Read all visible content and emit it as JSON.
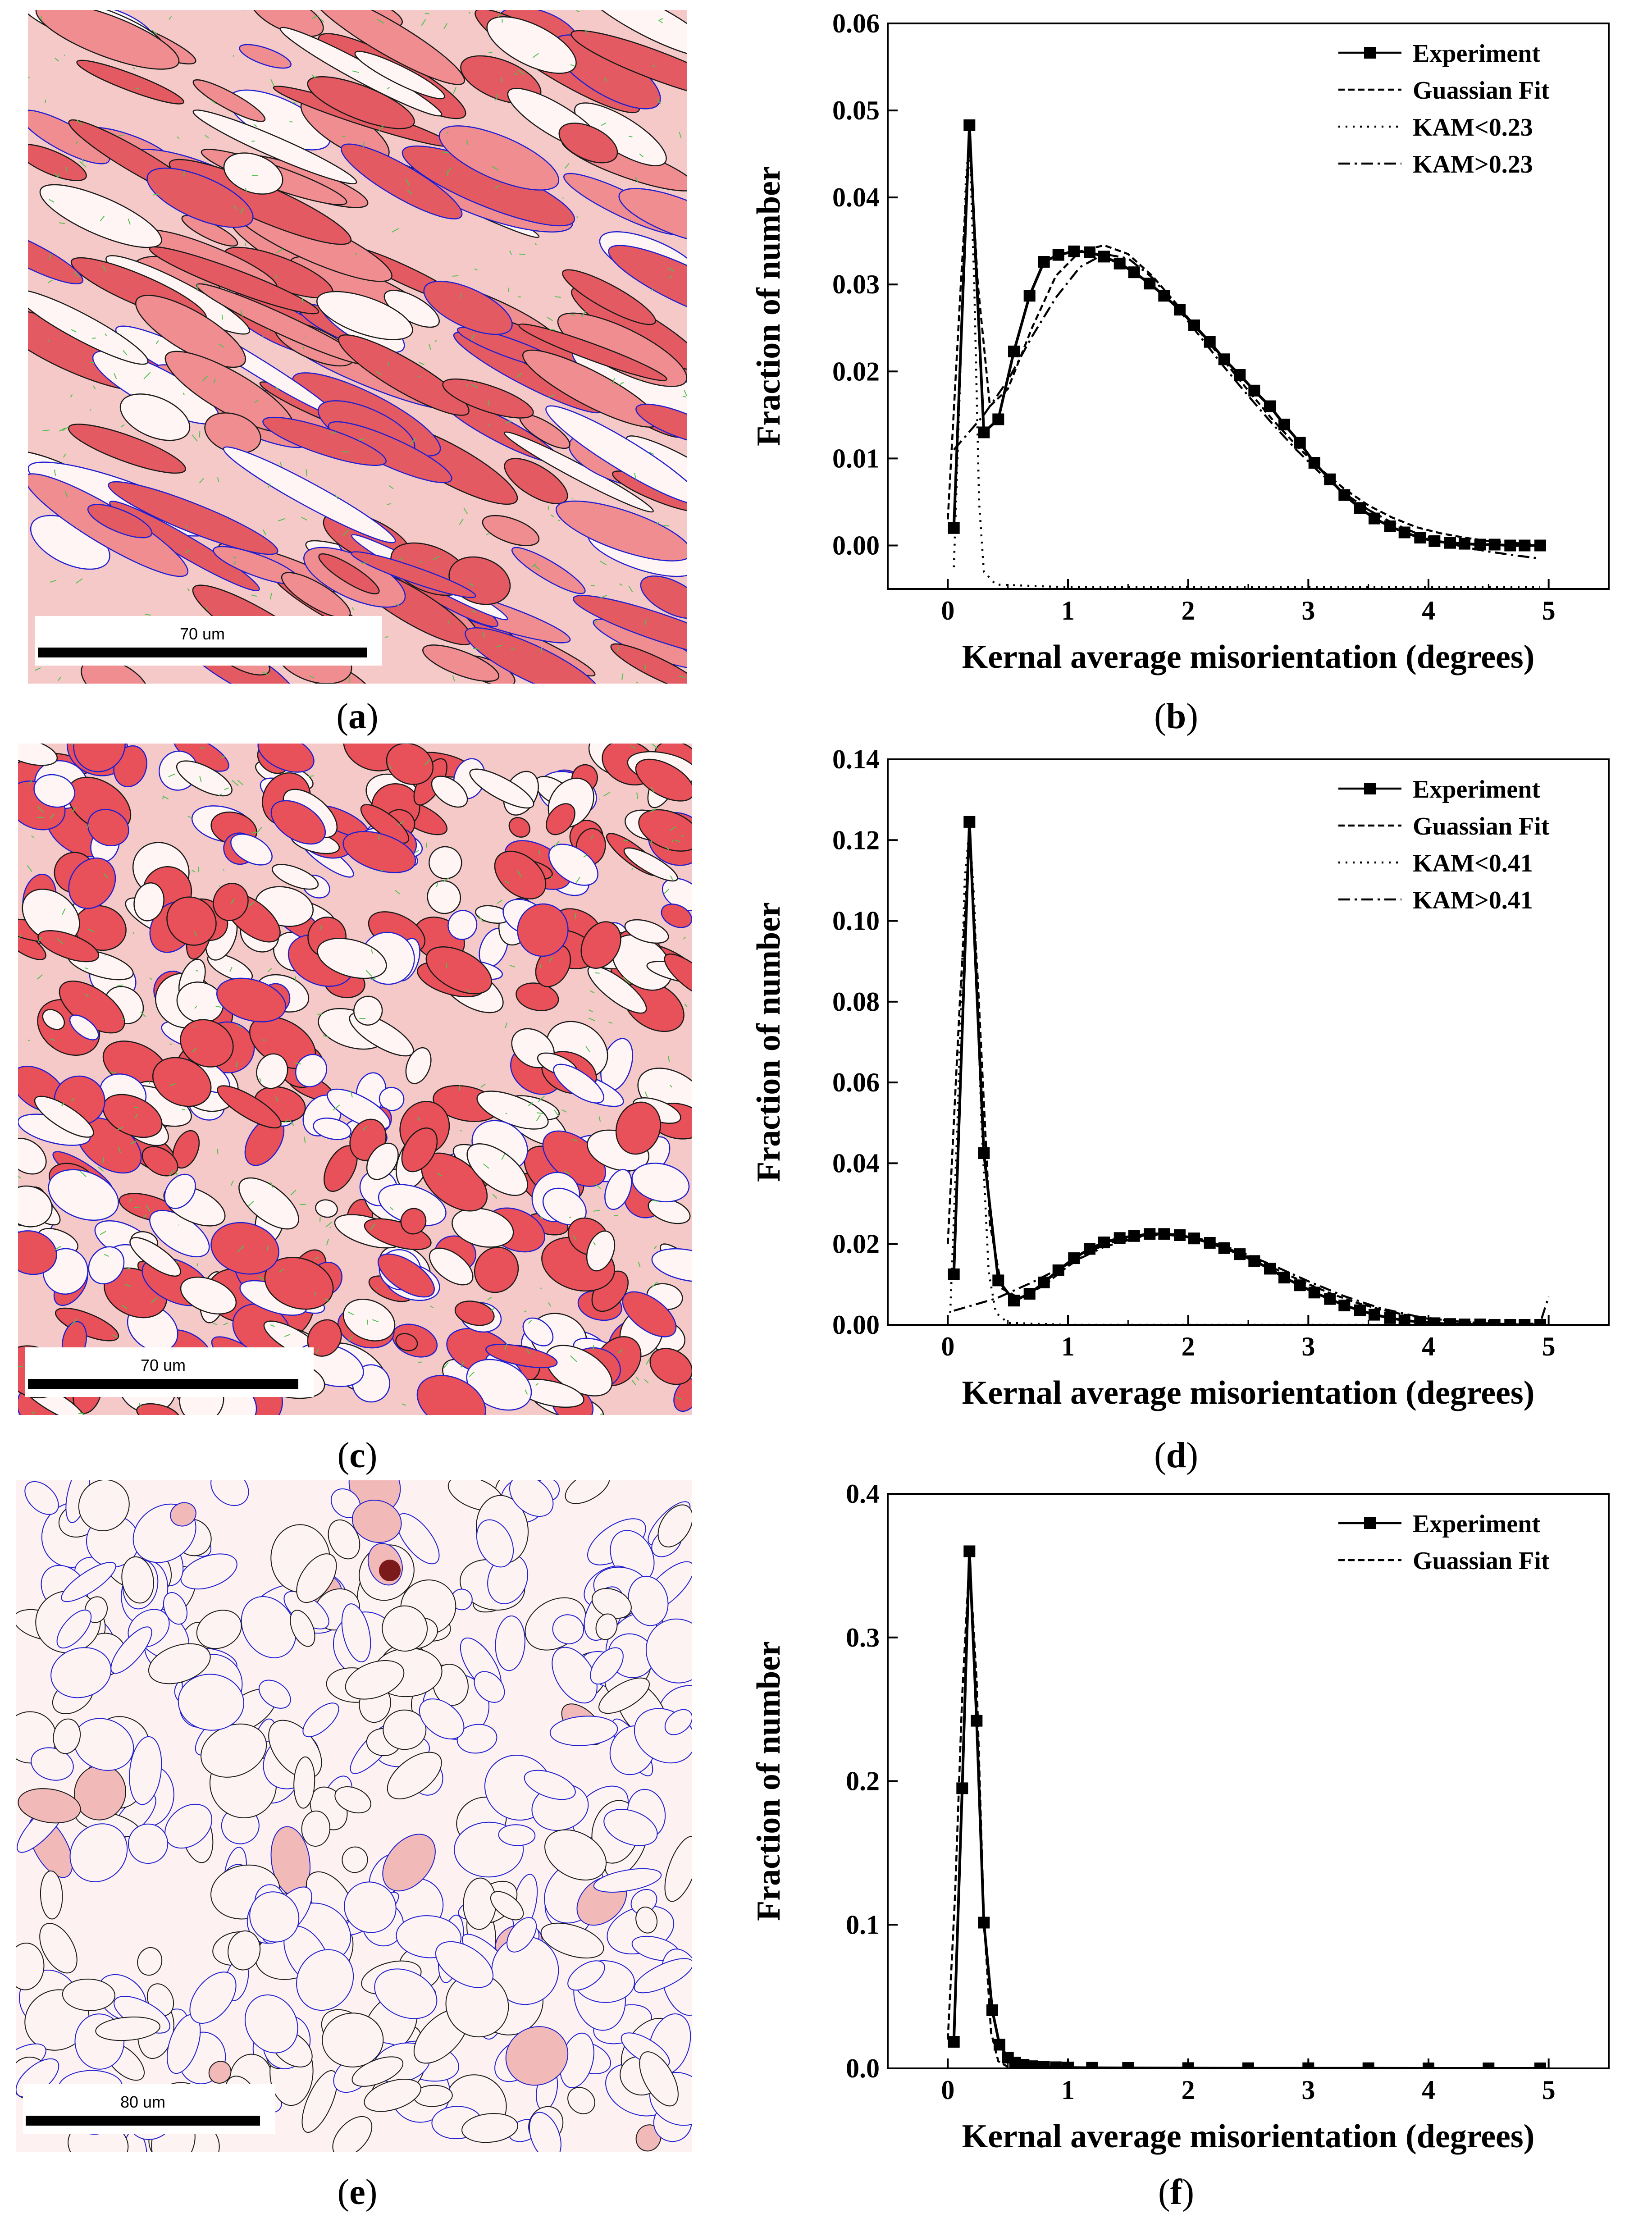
{
  "panels": [
    {
      "id": "a",
      "kind": "micrograph",
      "caption_letter": "a",
      "scale_label": "70 um",
      "style": "deformed"
    },
    {
      "id": "b",
      "kind": "chart",
      "caption_letter": "b"
    },
    {
      "id": "c",
      "kind": "micrograph",
      "caption_letter": "c",
      "scale_label": "70 um",
      "style": "mixed"
    },
    {
      "id": "d",
      "kind": "chart",
      "caption_letter": "d"
    },
    {
      "id": "e",
      "kind": "micrograph",
      "caption_letter": "e",
      "scale_label": "80 um",
      "style": "recrystallized"
    },
    {
      "id": "f",
      "kind": "chart",
      "caption_letter": "f"
    }
  ],
  "colors": {
    "kam_high": "#e8505a",
    "kam_low": "#fff5f5",
    "hagb": "#1a1a1a",
    "lagb": "#1f1fd0",
    "subgrain": "#4ec24e",
    "line": "#000000"
  },
  "chart_data": [
    {
      "type": "line",
      "panel": "b",
      "xlabel": "Kernal average misorientation (degrees)",
      "ylabel": "Fraction of number",
      "xlim": [
        -0.5,
        5.5
      ],
      "ylim": [
        -0.005,
        0.06
      ],
      "xticks": [
        0,
        1,
        2,
        3,
        4,
        5
      ],
      "yticks": [
        0.0,
        0.01,
        0.02,
        0.03,
        0.04,
        0.05,
        0.06
      ],
      "ytick_labels": [
        "0.00",
        "0.01",
        "0.02",
        "0.03",
        "0.04",
        "0.05",
        "0.06"
      ],
      "legend": [
        "Experiment",
        "Guassian Fit",
        "KAM<0.23",
        "KAM>0.23"
      ],
      "legend_position": "top-right",
      "series": [
        {
          "name": "Experiment",
          "style": "solid-square-markers",
          "x": [
            0.05,
            0.18,
            0.3,
            0.42,
            0.55,
            0.68,
            0.8,
            0.92,
            1.05,
            1.18,
            1.3,
            1.43,
            1.55,
            1.68,
            1.8,
            1.93,
            2.05,
            2.18,
            2.3,
            2.43,
            2.55,
            2.68,
            2.8,
            2.93,
            3.05,
            3.18,
            3.3,
            3.43,
            3.55,
            3.68,
            3.8,
            3.93,
            4.05,
            4.18,
            4.3,
            4.43,
            4.55,
            4.68,
            4.8,
            4.93
          ],
          "y": [
            0.002,
            0.0483,
            0.013,
            0.0145,
            0.0223,
            0.0287,
            0.0326,
            0.0334,
            0.0338,
            0.0337,
            0.0332,
            0.0324,
            0.0314,
            0.0301,
            0.0287,
            0.0271,
            0.0253,
            0.0234,
            0.0214,
            0.0196,
            0.0178,
            0.016,
            0.0139,
            0.0118,
            0.0095,
            0.0076,
            0.0058,
            0.0043,
            0.0031,
            0.0022,
            0.0015,
            0.0009,
            0.0005,
            0.0003,
            0.0002,
            0.0001,
            0.0001,
            0.0,
            0.0,
            0.0
          ]
        },
        {
          "name": "Guassian Fit",
          "style": "dashed",
          "x": [
            0.0,
            0.1,
            0.18,
            0.25,
            0.35,
            0.5,
            0.7,
            0.9,
            1.1,
            1.3,
            1.5,
            1.7,
            1.9,
            2.1,
            2.3,
            2.5,
            2.7,
            2.9,
            3.1,
            3.3,
            3.5,
            3.7,
            3.9,
            4.1,
            4.3,
            4.5,
            4.7,
            4.93
          ],
          "y": [
            0.003,
            0.028,
            0.047,
            0.03,
            0.016,
            0.018,
            0.025,
            0.031,
            0.0338,
            0.0345,
            0.0335,
            0.031,
            0.0278,
            0.0245,
            0.0212,
            0.0178,
            0.0145,
            0.0115,
            0.0088,
            0.0065,
            0.0046,
            0.0032,
            0.0021,
            0.0014,
            0.0009,
            0.0005,
            0.0003,
            0.0001
          ]
        },
        {
          "name": "KAM<0.23",
          "style": "dotted",
          "x": [
            0.05,
            0.1,
            0.15,
            0.18,
            0.22,
            0.26,
            0.3,
            0.4,
            1.0,
            2.0,
            3.0,
            4.0,
            4.93
          ],
          "y": [
            -0.0025,
            0.018,
            0.042,
            0.047,
            0.03,
            0.005,
            -0.003,
            -0.0045,
            -0.0048,
            -0.0048,
            -0.0048,
            -0.0048,
            -0.0048
          ]
        },
        {
          "name": "KAM>0.23",
          "style": "dash-dot",
          "x": [
            0.05,
            0.3,
            0.5,
            0.7,
            0.9,
            1.1,
            1.3,
            1.5,
            1.7,
            1.9,
            2.1,
            2.3,
            2.5,
            2.7,
            2.9,
            3.1,
            3.3,
            3.5,
            3.7,
            3.9,
            4.1,
            4.3,
            4.5,
            4.7,
            4.93
          ],
          "y": [
            0.011,
            0.015,
            0.019,
            0.024,
            0.0285,
            0.032,
            0.0335,
            0.033,
            0.0308,
            0.0275,
            0.024,
            0.0205,
            0.0172,
            0.014,
            0.011,
            0.0083,
            0.006,
            0.0041,
            0.0026,
            0.0014,
            0.0005,
            -0.0002,
            -0.0007,
            -0.0011,
            -0.0015
          ]
        }
      ]
    },
    {
      "type": "line",
      "panel": "d",
      "xlabel": "Kernal average misorientation (degrees)",
      "ylabel": "Fraction of number",
      "xlim": [
        -0.5,
        5.5
      ],
      "ylim": [
        0,
        0.14
      ],
      "xticks": [
        0,
        1,
        2,
        3,
        4,
        5
      ],
      "yticks": [
        0.0,
        0.02,
        0.04,
        0.06,
        0.08,
        0.1,
        0.12,
        0.14
      ],
      "ytick_labels": [
        "0.00",
        "0.02",
        "0.04",
        "0.06",
        "0.08",
        "0.10",
        "0.12",
        "0.14"
      ],
      "legend": [
        "Experiment",
        "Guassian Fit",
        "KAM<0.41",
        "KAM>0.41"
      ],
      "legend_position": "top-right",
      "series": [
        {
          "name": "Experiment",
          "style": "solid-square-markers",
          "x": [
            0.05,
            0.18,
            0.3,
            0.42,
            0.55,
            0.68,
            0.8,
            0.92,
            1.05,
            1.18,
            1.3,
            1.43,
            1.55,
            1.68,
            1.8,
            1.93,
            2.05,
            2.18,
            2.3,
            2.43,
            2.55,
            2.68,
            2.8,
            2.93,
            3.05,
            3.18,
            3.3,
            3.43,
            3.55,
            3.68,
            3.8,
            3.93,
            4.05,
            4.18,
            4.3,
            4.43,
            4.55,
            4.68,
            4.8,
            4.93
          ],
          "y": [
            0.0125,
            0.1245,
            0.0425,
            0.011,
            0.006,
            0.0077,
            0.0105,
            0.0135,
            0.0165,
            0.0188,
            0.0204,
            0.0215,
            0.022,
            0.0225,
            0.0225,
            0.0222,
            0.0214,
            0.0203,
            0.019,
            0.0175,
            0.0158,
            0.0139,
            0.0117,
            0.0098,
            0.008,
            0.0064,
            0.0048,
            0.0036,
            0.0025,
            0.0017,
            0.0011,
            0.0007,
            0.0004,
            0.0002,
            0.0001,
            0.0001,
            0.0,
            0.0,
            0.0,
            0.0
          ]
        },
        {
          "name": "Guassian Fit",
          "style": "dashed",
          "x": [
            0.0,
            0.1,
            0.18,
            0.25,
            0.35,
            0.45,
            0.6,
            0.8,
            1.0,
            1.2,
            1.4,
            1.6,
            1.8,
            2.0,
            2.2,
            2.4,
            2.6,
            2.8,
            3.0,
            3.2,
            3.4,
            3.6,
            3.8,
            4.0,
            4.3,
            4.6,
            4.93
          ],
          "y": [
            0.02,
            0.08,
            0.121,
            0.085,
            0.025,
            0.009,
            0.0065,
            0.0098,
            0.0145,
            0.0185,
            0.0208,
            0.022,
            0.0224,
            0.0218,
            0.0203,
            0.0181,
            0.0156,
            0.0128,
            0.0101,
            0.0076,
            0.0055,
            0.0038,
            0.0025,
            0.0015,
            0.0007,
            0.0002,
            0.0
          ]
        },
        {
          "name": "KAM<0.41",
          "style": "dotted",
          "x": [
            0.02,
            0.08,
            0.14,
            0.18,
            0.22,
            0.28,
            0.34,
            0.4,
            0.5,
            1.0,
            2.0,
            3.0,
            4.0,
            4.93
          ],
          "y": [
            0.003,
            0.05,
            0.11,
            0.123,
            0.105,
            0.05,
            0.013,
            0.003,
            0.0005,
            0.0,
            0.0,
            0.0,
            0.0,
            0.0
          ]
        },
        {
          "name": "KAM>0.41",
          "style": "dash-dot",
          "x": [
            0.05,
            0.4,
            0.7,
            1.0,
            1.3,
            1.6,
            1.8,
            2.1,
            2.4,
            2.7,
            3.0,
            3.3,
            3.6,
            3.9,
            4.2,
            4.5,
            4.8,
            4.93,
            5.0
          ],
          "y": [
            0.0035,
            0.0065,
            0.0105,
            0.015,
            0.0193,
            0.0218,
            0.0224,
            0.0213,
            0.0185,
            0.0148,
            0.0108,
            0.0071,
            0.0041,
            0.0021,
            0.0009,
            0.0003,
            0.0001,
            0.0005,
            0.007
          ]
        }
      ]
    },
    {
      "type": "line",
      "panel": "f",
      "xlabel": "Kernal average misorientation (degrees)",
      "ylabel": "Fraction of number",
      "xlim": [
        -0.5,
        5.5
      ],
      "ylim": [
        0,
        0.4
      ],
      "xticks": [
        0,
        1,
        2,
        3,
        4,
        5
      ],
      "yticks": [
        0.0,
        0.1,
        0.2,
        0.3,
        0.4
      ],
      "ytick_labels": [
        "0.0",
        "0.1",
        "0.2",
        "0.3",
        "0.4"
      ],
      "legend": [
        "Experiment",
        "Guassian Fit"
      ],
      "legend_position": "top-right",
      "series": [
        {
          "name": "Experiment",
          "style": "solid-square-markers",
          "x": [
            0.05,
            0.12,
            0.18,
            0.24,
            0.3,
            0.37,
            0.43,
            0.5,
            0.56,
            0.63,
            0.7,
            0.8,
            0.9,
            1.0,
            1.2,
            1.5,
            2.0,
            2.5,
            3.0,
            3.5,
            4.0,
            4.5,
            4.93
          ],
          "y": [
            0.0185,
            0.195,
            0.36,
            0.242,
            0.1015,
            0.0405,
            0.0165,
            0.0075,
            0.004,
            0.0025,
            0.0015,
            0.001,
            0.0008,
            0.0006,
            0.0004,
            0.0003,
            0.0002,
            0.0001,
            0.0001,
            0.0001,
            0.0,
            0.0,
            0.0
          ]
        },
        {
          "name": "Guassian Fit",
          "style": "dashed",
          "x": [
            0.0,
            0.06,
            0.12,
            0.18,
            0.24,
            0.3,
            0.36,
            0.42,
            0.5,
            0.6,
            0.8,
            1.0,
            2.0,
            3.0,
            4.0,
            4.93
          ],
          "y": [
            0.02,
            0.12,
            0.26,
            0.355,
            0.27,
            0.105,
            0.025,
            0.005,
            0.001,
            0.0,
            0.0,
            0.0,
            0.0,
            0.0,
            0.0,
            0.0
          ]
        }
      ]
    }
  ]
}
